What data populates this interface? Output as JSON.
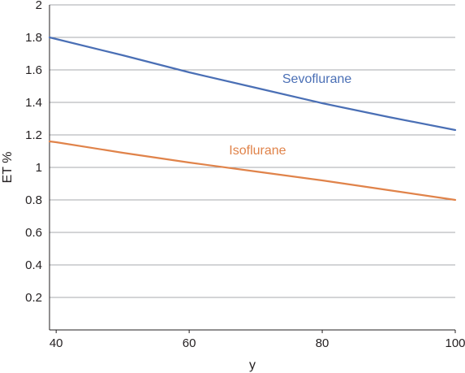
{
  "chart_data": {
    "type": "line",
    "title": "",
    "xlabel": "y",
    "ylabel": "ET %",
    "xlim": [
      39,
      100
    ],
    "ylim": [
      0,
      2
    ],
    "x_ticks": [
      40,
      60,
      80,
      100
    ],
    "x_tick_labels": [
      "40",
      "60",
      "80",
      "100"
    ],
    "y_ticks": [
      0.2,
      0.4,
      0.6,
      0.8,
      1,
      1.2,
      1.4,
      1.6,
      1.8,
      2
    ],
    "y_tick_labels": [
      "0.2",
      "0.4",
      "0.6",
      "0.8",
      "1",
      "1.2",
      "1.4",
      "1.6",
      "1.8",
      "2"
    ],
    "grid": "horizontal",
    "legend": "inline labels",
    "series": [
      {
        "name": "Sevoflurane",
        "color": "#4a6fb5",
        "label_at": [
          74,
          1.52
        ],
        "x": [
          39,
          40,
          50,
          60,
          70,
          80,
          90,
          100
        ],
        "y": [
          1.8,
          1.79,
          1.69,
          1.585,
          1.49,
          1.395,
          1.31,
          1.23
        ]
      },
      {
        "name": "Isoflurane",
        "color": "#e0834a",
        "label_at": [
          66,
          1.08
        ],
        "x": [
          39,
          40,
          50,
          60,
          70,
          80,
          90,
          100
        ],
        "y": [
          1.16,
          1.155,
          1.09,
          1.03,
          0.975,
          0.92,
          0.86,
          0.8
        ]
      }
    ]
  }
}
